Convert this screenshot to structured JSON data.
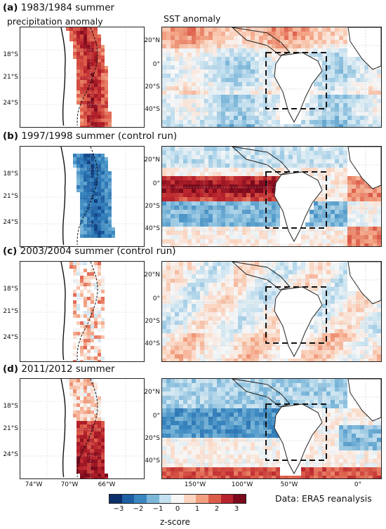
{
  "header": {
    "sst_title": "SST anomaly"
  },
  "rows": [
    {
      "letter": "(a)",
      "title_main": "1983/1984 summer",
      "title_sub": "precipitation anomaly",
      "precip": "pos_strong",
      "sst": "weak_pos"
    },
    {
      "letter": "(b)",
      "title_main": "1997/1998 summer (control run)",
      "title_sub": "",
      "precip": "neg_strong",
      "sst": "el_nino"
    },
    {
      "letter": "(c)",
      "title_main": "2003/2004 summer (control run)",
      "title_sub": "",
      "precip": "weak_mixed",
      "sst": "weak_mixed"
    },
    {
      "letter": "(d)",
      "title_main": "2011/2012 summer",
      "title_sub": "",
      "precip": "pos_south",
      "sst": "la_nina"
    }
  ],
  "precip_lat_ticks": [
    "18°S",
    "21°S",
    "24°S"
  ],
  "precip_lon_ticks": [
    "74°W",
    "70°W",
    "66°W"
  ],
  "sst_lat_ticks": [
    "20°N",
    "0°",
    "20°S",
    "40°S"
  ],
  "sst_lon_ticks": [
    "150°W",
    "100°W",
    "50°W",
    "0°"
  ],
  "colorbar": {
    "ticks": [
      "−3",
      "−2",
      "−1",
      "0",
      "1",
      "2",
      "3"
    ],
    "label": "z-score",
    "colors": [
      "#0b2f6b",
      "#1f5fa3",
      "#3a87c0",
      "#7bb6d9",
      "#c4e0ef",
      "#f7f7f7",
      "#fbd5c0",
      "#f29f80",
      "#dc5c4a",
      "#b7222c",
      "#7a0a1c"
    ]
  },
  "credit": "Data: ERA5 reanalysis"
}
